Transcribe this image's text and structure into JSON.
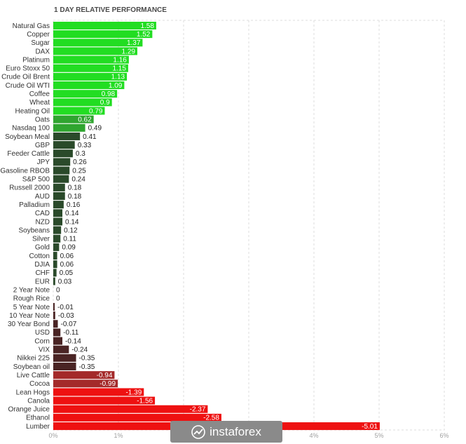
{
  "chart_data": {
    "type": "bar",
    "orientation": "horizontal",
    "title": "1 DAY RELATIVE PERFORMANCE",
    "categories": [
      "Natural Gas",
      "Copper",
      "Sugar",
      "DAX",
      "Platinum",
      "Euro Stoxx 50",
      "Crude Oil Brent",
      "Crude Oil WTI",
      "Coffee",
      "Wheat",
      "Heating Oil",
      "Oats",
      "Nasdaq 100",
      "Soybean Meal",
      "GBP",
      "Feeder Cattle",
      "JPY",
      "Gasoline RBOB",
      "S&P 500",
      "Russell 2000",
      "AUD",
      "Palladium",
      "CAD",
      "NZD",
      "Soybeans",
      "Silver",
      "Gold",
      "Cotton",
      "DJIA",
      "CHF",
      "EUR",
      "2 Year Note",
      "Rough Rice",
      "5 Year Note",
      "10 Year Note",
      "30 Year Bond",
      "USD",
      "Corn",
      "VIX",
      "Nikkei 225",
      "Soybean oil",
      "Live Cattle",
      "Cocoa",
      "Lean Hogs",
      "Canola",
      "Orange Juice",
      "Ethanol",
      "Lumber"
    ],
    "values": [
      1.58,
      1.52,
      1.37,
      1.29,
      1.16,
      1.15,
      1.13,
      1.09,
      0.98,
      0.9,
      0.79,
      0.62,
      0.49,
      0.41,
      0.33,
      0.3,
      0.26,
      0.25,
      0.24,
      0.18,
      0.18,
      0.16,
      0.14,
      0.14,
      0.12,
      0.11,
      0.09,
      0.06,
      0.06,
      0.05,
      0.03,
      0,
      0,
      -0.01,
      -0.03,
      -0.07,
      -0.11,
      -0.14,
      -0.24,
      -0.35,
      -0.35,
      -0.94,
      -0.99,
      -1.39,
      -1.56,
      -2.37,
      -2.58,
      -5.01
    ],
    "value_labels": [
      "1.58",
      "1.52",
      "1.37",
      "1.29",
      "1.16",
      "1.15",
      "1.13",
      "1.09",
      "0.98",
      "0.9",
      "0.79",
      "0.62",
      "0.49",
      "0.41",
      "0.33",
      "0.3",
      "0.26",
      "0.25",
      "0.24",
      "0.18",
      "0.18",
      "0.16",
      "0.14",
      "0.14",
      "0.12",
      "0.11",
      "0.09",
      "0.06",
      "0.06",
      "0.05",
      "0.03",
      "0",
      "0",
      "-0.01",
      "-0.03",
      "-0.07",
      "-0.11",
      "-0.14",
      "-0.24",
      "-0.35",
      "-0.35",
      "-0.94",
      "-0.99",
      "-1.39",
      "-1.56",
      "-2.37",
      "-2.58",
      "-5.01"
    ],
    "x_ticks": [
      "0%",
      "1%",
      "2%",
      "3%",
      "4%",
      "5%",
      "6%"
    ],
    "xlim": [
      0,
      6
    ],
    "grid": "vertical dashed",
    "colors": {
      "positive_strong": "#22dd22",
      "positive_mid": "#2fa52f",
      "positive_dark": "#2a4a2a",
      "negative_dark": "#4a2424",
      "negative_mid": "#a42a2a",
      "negative_strong": "#ee1111"
    }
  },
  "watermark": {
    "text": "instaforex"
  }
}
